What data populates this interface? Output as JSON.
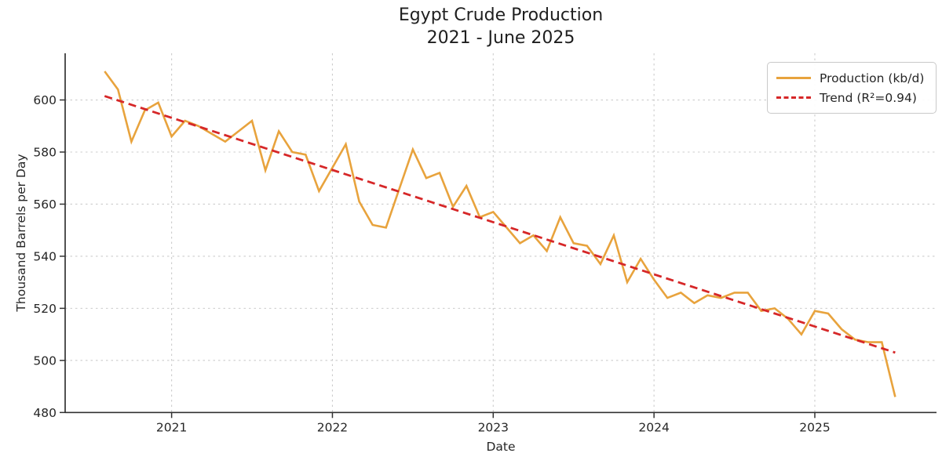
{
  "title": {
    "line1": "Egypt Crude Production",
    "line2": "2021 - June 2025"
  },
  "axes": {
    "x_label": "Date",
    "y_label": "Thousand Barrels per Day",
    "x_tick_labels": [
      "2021",
      "2022",
      "2023",
      "2024",
      "2025"
    ],
    "y_tick_labels": [
      480,
      500,
      520,
      540,
      560,
      580,
      600
    ]
  },
  "legend": {
    "items": [
      {
        "label": "Production (kb/d)",
        "color": "#E8A33D",
        "style": "solid"
      },
      {
        "label": "Trend (R²=0.94)",
        "color": "#D62728",
        "style": "dashed"
      }
    ]
  },
  "colors": {
    "production_line": "#E8A33D",
    "trend_line": "#D62728",
    "grid": "#cccccc",
    "spine": "#333333",
    "text": "#262626",
    "background": "#ffffff"
  },
  "chart_data": {
    "type": "line",
    "title": "Egypt Crude Production 2021 - June 2025",
    "xlabel": "Date",
    "ylabel": "Thousand Barrels per Day",
    "ylim": [
      480,
      617
    ],
    "grid": true,
    "legend_position": "upper right",
    "x": [
      "2020-07",
      "2020-08",
      "2020-09",
      "2020-10",
      "2020-11",
      "2020-12",
      "2021-01",
      "2021-02",
      "2021-03",
      "2021-04",
      "2021-05",
      "2021-06",
      "2021-07",
      "2021-08",
      "2021-09",
      "2021-10",
      "2021-11",
      "2021-12",
      "2022-01",
      "2022-02",
      "2022-03",
      "2022-04",
      "2022-05",
      "2022-06",
      "2022-07",
      "2022-08",
      "2022-09",
      "2022-10",
      "2022-11",
      "2022-12",
      "2023-01",
      "2023-02",
      "2023-03",
      "2023-04",
      "2023-05",
      "2023-06",
      "2023-07",
      "2023-08",
      "2023-09",
      "2023-10",
      "2023-11",
      "2023-12",
      "2024-01",
      "2024-02",
      "2024-03",
      "2024-04",
      "2024-05",
      "2024-06",
      "2024-07",
      "2024-08",
      "2024-09",
      "2024-10",
      "2024-11",
      "2024-12",
      "2025-01",
      "2025-02",
      "2025-03",
      "2025-04",
      "2025-05",
      "2025-06"
    ],
    "series": [
      {
        "name": "Production (kb/d)",
        "values": [
          611,
          604,
          584,
          596,
          599,
          586,
          592,
          590,
          587,
          584,
          588,
          592,
          573,
          588,
          580,
          579,
          565,
          574,
          583,
          561,
          552,
          551,
          566,
          581,
          570,
          572,
          559,
          567,
          555,
          557,
          551,
          545,
          548,
          542,
          555,
          545,
          544,
          537,
          548,
          530,
          539,
          531,
          524,
          526,
          522,
          525,
          524,
          526,
          526,
          519,
          520,
          516,
          510,
          519,
          518,
          512,
          508,
          507,
          507,
          486
        ]
      },
      {
        "name": "Trend (R²=0.94)",
        "trend_start": 601.5,
        "trend_end": 503,
        "r_squared": 0.94
      }
    ]
  }
}
